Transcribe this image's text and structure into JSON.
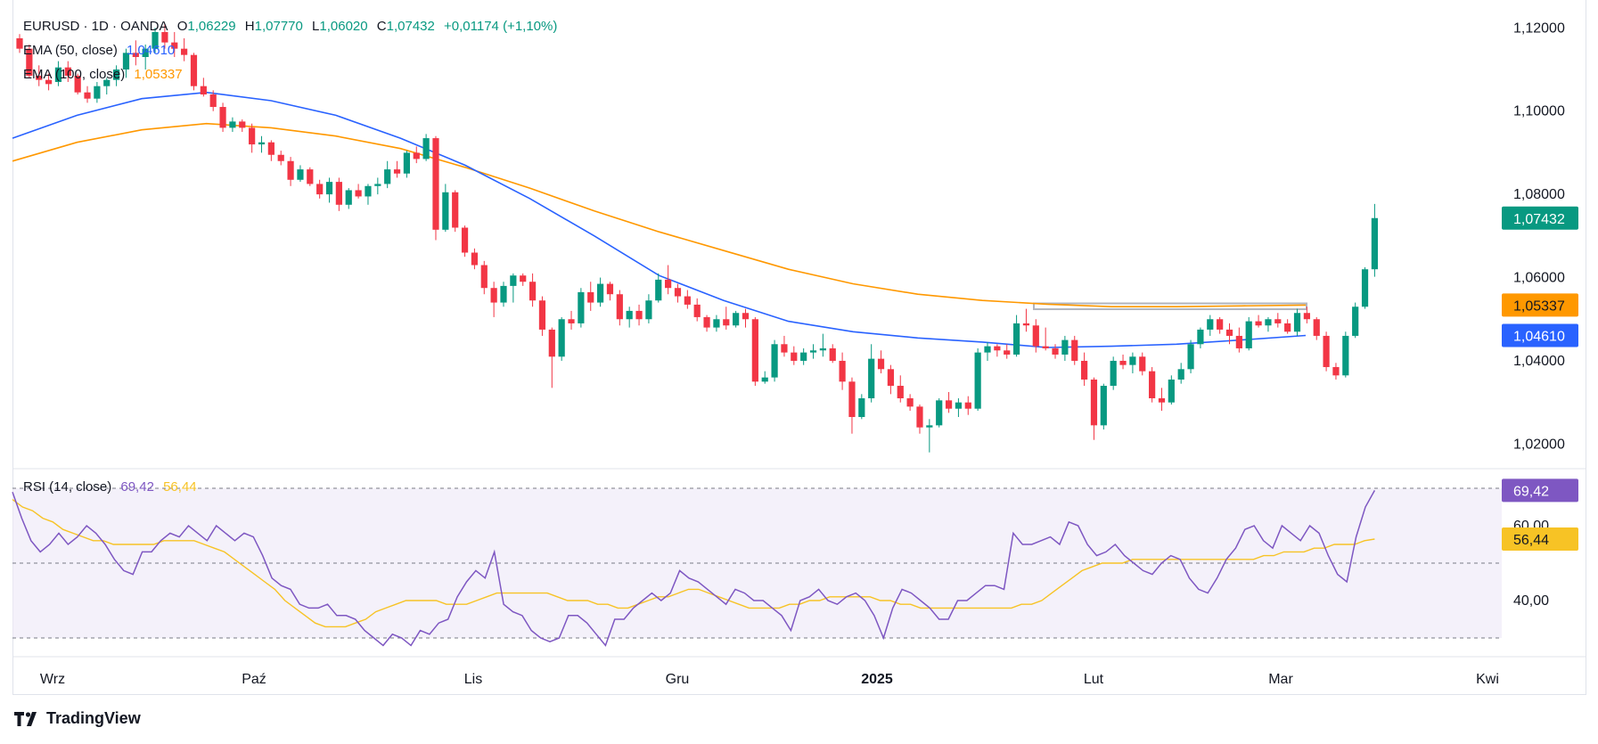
{
  "header": {
    "symbol": "EURUSD · 1D · OANDA",
    "o_label": "O",
    "o_value": "1,06229",
    "h_label": "H",
    "h_value": "1,07770",
    "l_label": "L",
    "l_value": "1,06020",
    "c_label": "C",
    "c_value": "1,07432",
    "change": "+0,01174 (+1,10%)"
  },
  "indicators": {
    "ema50_label": "EMA (50, close)",
    "ema50_value": "1,04610",
    "ema100_label": "EMA (100, close)",
    "ema100_value": "1,05337",
    "rsi_label": "RSI (14, close)",
    "rsi_value": "69,42",
    "rsi_ma_value": "56,44"
  },
  "branding": {
    "name": "TradingView"
  },
  "colors": {
    "up": "#089981",
    "down": "#f23645",
    "ema50": "#2962ff",
    "ema100": "#ff9800",
    "rsi": "#7e57c2",
    "rsi_ma": "#f7c325",
    "rsi_band": "#ede7f6",
    "zone": "#b2b5be"
  },
  "chart_data": [
    {
      "type": "candlestick",
      "title": "EURUSD · 1D · OANDA",
      "x_ticks": [
        "Wrz",
        "Paź",
        "Lis",
        "Gru",
        "2025",
        "Lut",
        "Mar",
        "Kwi"
      ],
      "y_ticks": [
        "1,12000",
        "1,10000",
        "1,08000",
        "1,06000",
        "1,04000",
        "1,02000"
      ],
      "ylim": [
        1.0143,
        1.1267
      ],
      "price_badges": [
        "1,07432",
        "1,05337",
        "1,04610"
      ],
      "candles_ohlc": [
        [
          1.1175,
          1.1185,
          1.114,
          1.115
        ],
        [
          1.115,
          1.116,
          1.108,
          1.1085
        ],
        [
          1.1085,
          1.111,
          1.106,
          1.1075
        ],
        [
          1.1075,
          1.109,
          1.105,
          1.1065
        ],
        [
          1.107,
          1.112,
          1.106,
          1.1105
        ],
        [
          1.1105,
          1.112,
          1.107,
          1.1085
        ],
        [
          1.1085,
          1.109,
          1.104,
          1.1045
        ],
        [
          1.1045,
          1.106,
          1.102,
          1.103
        ],
        [
          1.103,
          1.107,
          1.102,
          1.106
        ],
        [
          1.106,
          1.108,
          1.104,
          1.1075
        ],
        [
          1.1075,
          1.111,
          1.106,
          1.11
        ],
        [
          1.11,
          1.115,
          1.108,
          1.114
        ],
        [
          1.114,
          1.117,
          1.111,
          1.113
        ],
        [
          1.113,
          1.116,
          1.11,
          1.115
        ],
        [
          1.115,
          1.12,
          1.114,
          1.119
        ],
        [
          1.119,
          1.121,
          1.115,
          1.1165
        ],
        [
          1.1165,
          1.119,
          1.113,
          1.115
        ],
        [
          1.115,
          1.1175,
          1.112,
          1.1135
        ],
        [
          1.1135,
          1.114,
          1.105,
          1.106
        ],
        [
          1.106,
          1.108,
          1.1035,
          1.104
        ],
        [
          1.104,
          1.105,
          1.1,
          1.101
        ],
        [
          1.101,
          1.102,
          1.095,
          1.096
        ],
        [
          1.096,
          1.0985,
          1.095,
          1.0975
        ],
        [
          1.0975,
          1.098,
          1.095,
          1.096
        ],
        [
          1.096,
          1.097,
          1.09,
          1.092
        ],
        [
          1.092,
          1.094,
          1.09,
          1.0925
        ],
        [
          1.0925,
          1.093,
          1.088,
          1.0895
        ],
        [
          1.0895,
          1.0905,
          1.087,
          1.088
        ],
        [
          1.088,
          1.089,
          1.082,
          1.0835
        ],
        [
          1.0835,
          1.087,
          1.083,
          1.086
        ],
        [
          1.086,
          1.0865,
          1.082,
          1.0825
        ],
        [
          1.0825,
          1.0835,
          1.079,
          1.08
        ],
        [
          1.08,
          1.084,
          1.078,
          1.083
        ],
        [
          1.083,
          1.084,
          1.076,
          1.0775
        ],
        [
          1.0775,
          1.0815,
          1.0765,
          1.081
        ],
        [
          1.081,
          1.0825,
          1.079,
          1.0795
        ],
        [
          1.0795,
          1.0825,
          1.0775,
          1.082
        ],
        [
          1.082,
          1.084,
          1.08,
          1.0825
        ],
        [
          1.0825,
          1.088,
          1.0815,
          1.086
        ],
        [
          1.086,
          1.088,
          1.084,
          1.085
        ],
        [
          1.085,
          1.0905,
          1.084,
          1.09
        ],
        [
          1.09,
          1.0915,
          1.0875,
          1.0885
        ],
        [
          1.0885,
          1.0945,
          1.088,
          1.0935
        ],
        [
          1.0935,
          1.094,
          1.069,
          1.0715
        ],
        [
          1.0715,
          1.0825,
          1.071,
          1.0805
        ],
        [
          1.0805,
          1.081,
          1.071,
          1.072
        ],
        [
          1.072,
          1.0725,
          1.065,
          1.066
        ],
        [
          1.066,
          1.067,
          1.062,
          1.063
        ],
        [
          1.063,
          1.064,
          1.056,
          1.0575
        ],
        [
          1.0575,
          1.059,
          1.0505,
          1.054
        ],
        [
          1.054,
          1.059,
          1.053,
          1.058
        ],
        [
          1.058,
          1.061,
          1.054,
          1.0605
        ],
        [
          1.0605,
          1.061,
          1.058,
          1.059
        ],
        [
          1.059,
          1.061,
          1.053,
          1.0545
        ],
        [
          1.0545,
          1.0555,
          1.046,
          1.0475
        ],
        [
          1.0475,
          1.048,
          1.0335,
          1.041
        ],
        [
          1.041,
          1.0505,
          1.04,
          1.05
        ],
        [
          1.05,
          1.052,
          1.0475,
          1.049
        ],
        [
          1.049,
          1.0575,
          1.048,
          1.0565
        ],
        [
          1.0565,
          1.059,
          1.052,
          1.054
        ],
        [
          1.054,
          1.06,
          1.053,
          1.0585
        ],
        [
          1.0585,
          1.059,
          1.0545,
          1.056
        ],
        [
          1.056,
          1.057,
          1.0485,
          1.05
        ],
        [
          1.05,
          1.053,
          1.048,
          1.052
        ],
        [
          1.052,
          1.0535,
          1.0485,
          1.05
        ],
        [
          1.05,
          1.056,
          1.049,
          1.0545
        ],
        [
          1.0545,
          1.061,
          1.054,
          1.0595
        ],
        [
          1.0595,
          1.063,
          1.056,
          1.0575
        ],
        [
          1.0575,
          1.0585,
          1.054,
          1.0555
        ],
        [
          1.0555,
          1.057,
          1.0525,
          1.0535
        ],
        [
          1.0535,
          1.055,
          1.0495,
          1.0505
        ],
        [
          1.0505,
          1.051,
          1.047,
          1.048
        ],
        [
          1.048,
          1.051,
          1.047,
          1.05
        ],
        [
          1.05,
          1.053,
          1.0475,
          1.0485
        ],
        [
          1.0485,
          1.052,
          1.048,
          1.0515
        ],
        [
          1.0515,
          1.0525,
          1.048,
          1.05
        ],
        [
          1.05,
          1.0505,
          1.034,
          1.035
        ],
        [
          1.035,
          1.0375,
          1.0345,
          1.036
        ],
        [
          1.036,
          1.045,
          1.035,
          1.044
        ],
        [
          1.044,
          1.046,
          1.041,
          1.042
        ],
        [
          1.042,
          1.0435,
          1.039,
          1.04
        ],
        [
          1.04,
          1.043,
          1.039,
          1.042
        ],
        [
          1.042,
          1.044,
          1.0405,
          1.0425
        ],
        [
          1.0425,
          1.0465,
          1.041,
          1.043
        ],
        [
          1.043,
          1.044,
          1.0395,
          1.04
        ],
        [
          1.04,
          1.042,
          1.033,
          1.035
        ],
        [
          1.035,
          1.036,
          1.0225,
          1.0265
        ],
        [
          1.0265,
          1.032,
          1.026,
          1.031
        ],
        [
          1.031,
          1.044,
          1.03,
          1.0405
        ],
        [
          1.0405,
          1.0425,
          1.037,
          1.038
        ],
        [
          1.038,
          1.039,
          1.032,
          1.034
        ],
        [
          1.034,
          1.0365,
          1.03,
          1.031
        ],
        [
          1.031,
          1.032,
          1.028,
          1.029
        ],
        [
          1.029,
          1.0295,
          1.0225,
          1.024
        ],
        [
          1.024,
          1.026,
          1.018,
          1.0245
        ],
        [
          1.0245,
          1.031,
          1.024,
          1.0305
        ],
        [
          1.0305,
          1.0325,
          1.0275,
          1.0285
        ],
        [
          1.0285,
          1.031,
          1.0265,
          1.03
        ],
        [
          1.03,
          1.0315,
          1.027,
          1.0285
        ],
        [
          1.0285,
          1.043,
          1.028,
          1.042
        ],
        [
          1.042,
          1.0445,
          1.04,
          1.0435
        ],
        [
          1.0435,
          1.044,
          1.041,
          1.0425
        ],
        [
          1.0425,
          1.044,
          1.0405,
          1.0415
        ],
        [
          1.0415,
          1.051,
          1.041,
          1.049
        ],
        [
          1.049,
          1.0525,
          1.047,
          1.0485
        ],
        [
          1.0485,
          1.05,
          1.042,
          1.0435
        ],
        [
          1.0435,
          1.048,
          1.0425,
          1.043
        ],
        [
          1.043,
          1.044,
          1.0405,
          1.0415
        ],
        [
          1.0415,
          1.046,
          1.04,
          1.045
        ],
        [
          1.045,
          1.046,
          1.039,
          1.04
        ],
        [
          1.04,
          1.042,
          1.034,
          1.0355
        ],
        [
          1.0355,
          1.036,
          1.021,
          1.0245
        ],
        [
          1.0245,
          1.0345,
          1.0235,
          1.034
        ],
        [
          1.034,
          1.041,
          1.033,
          1.04
        ],
        [
          1.04,
          1.0415,
          1.038,
          1.039
        ],
        [
          1.039,
          1.042,
          1.037,
          1.041
        ],
        [
          1.041,
          1.042,
          1.0365,
          1.0375
        ],
        [
          1.0375,
          1.0385,
          1.03,
          1.031
        ],
        [
          1.031,
          1.0335,
          1.028,
          1.03
        ],
        [
          1.03,
          1.0365,
          1.0295,
          1.0355
        ],
        [
          1.0355,
          1.0395,
          1.0345,
          1.038
        ],
        [
          1.038,
          1.045,
          1.037,
          1.044
        ],
        [
          1.044,
          1.048,
          1.043,
          1.0475
        ],
        [
          1.0475,
          1.051,
          1.046,
          1.05
        ],
        [
          1.05,
          1.0505,
          1.0465,
          1.0475
        ],
        [
          1.0475,
          1.049,
          1.044,
          1.046
        ],
        [
          1.046,
          1.048,
          1.042,
          1.043
        ],
        [
          1.043,
          1.0505,
          1.0425,
          1.0495
        ],
        [
          1.0495,
          1.051,
          1.048,
          1.0485
        ],
        [
          1.0485,
          1.0505,
          1.047,
          1.05
        ],
        [
          1.05,
          1.0515,
          1.048,
          1.049
        ],
        [
          1.049,
          1.05,
          1.0465,
          1.047
        ],
        [
          1.047,
          1.0525,
          1.046,
          1.0515
        ],
        [
          1.0515,
          1.053,
          1.049,
          1.05
        ],
        [
          1.05,
          1.0505,
          1.045,
          1.046
        ],
        [
          1.046,
          1.047,
          1.0375,
          1.0385
        ],
        [
          1.0385,
          1.0395,
          1.0355,
          1.0365
        ],
        [
          1.0365,
          1.047,
          1.036,
          1.046
        ],
        [
          1.046,
          1.054,
          1.0455,
          1.053
        ],
        [
          1.053,
          1.0625,
          1.0525,
          1.062
        ],
        [
          1.062,
          1.0777,
          1.0602,
          1.0743
        ]
      ],
      "ema50": [
        1.0935,
        1.099,
        1.103,
        1.1045,
        1.1025,
        1.099,
        1.0935,
        1.087,
        1.079,
        1.07,
        1.0605,
        1.0545,
        1.0495,
        1.047,
        1.0455,
        1.0445,
        1.0432,
        1.0435,
        1.044,
        1.045,
        1.0461
      ],
      "ema100": [
        1.088,
        1.0925,
        1.0955,
        1.097,
        1.096,
        1.094,
        1.091,
        1.0865,
        1.0815,
        1.076,
        1.071,
        1.0665,
        1.062,
        1.0585,
        1.056,
        1.0545,
        1.0536,
        1.053,
        1.053,
        1.0532,
        1.0534
      ],
      "resistance_zone": [
        1.0524,
        1.0538
      ]
    },
    {
      "type": "line",
      "title": "RSI (14, close)",
      "y_ticks": [
        "60,00",
        "40,00"
      ],
      "ylim": [
        25,
        75
      ],
      "levels": [
        70,
        50,
        30
      ],
      "price_badges": [
        "69,42",
        "56,44"
      ],
      "series": [
        {
          "name": "RSI",
          "values": [
            69,
            62,
            56,
            53,
            55,
            58,
            55,
            57,
            60,
            58,
            55,
            51,
            48,
            47,
            53,
            53,
            56,
            58,
            57,
            60,
            58,
            56,
            60,
            58,
            56,
            58,
            57,
            52,
            46,
            44,
            43,
            39,
            38,
            38,
            39,
            36,
            36,
            35,
            32,
            30,
            28,
            31,
            30,
            28,
            32,
            31,
            34,
            35,
            41,
            45,
            48,
            46,
            53,
            39,
            37,
            36,
            32,
            30,
            29,
            30,
            36,
            36,
            34,
            31,
            28,
            35,
            35,
            38,
            40,
            42,
            40,
            42,
            48,
            46,
            45,
            43,
            41,
            39,
            43,
            42,
            40,
            40,
            38,
            36,
            32,
            40,
            41,
            43,
            40,
            39,
            41,
            42,
            40,
            36,
            30,
            38,
            43,
            42,
            40,
            38,
            35,
            35,
            40,
            40,
            42,
            44,
            44,
            43,
            58,
            55,
            55,
            56,
            57,
            55,
            61,
            60,
            55,
            52,
            53,
            55,
            52,
            50,
            48,
            47,
            50,
            52,
            51,
            46,
            43,
            42,
            46,
            51,
            54,
            59,
            60,
            56,
            54,
            60,
            58,
            56,
            60,
            58,
            52,
            47,
            45,
            57,
            65,
            69.42
          ]
        },
        {
          "name": "RSI MA",
          "values": [
            67,
            65,
            64,
            62,
            61,
            59,
            58,
            57,
            56,
            56,
            55,
            55,
            55,
            55,
            55,
            56,
            56,
            56,
            56,
            55,
            54,
            53,
            51,
            49,
            47,
            45,
            43,
            40,
            38,
            36,
            34,
            33,
            33,
            33,
            34,
            35,
            37,
            38,
            39,
            40,
            40,
            40,
            40,
            39,
            39,
            39,
            40,
            41,
            42,
            42,
            42,
            42,
            42,
            42,
            41,
            40,
            40,
            40,
            39,
            39,
            38,
            38,
            39,
            40,
            41,
            41,
            42,
            43,
            43,
            42,
            41,
            40,
            39,
            38,
            38,
            38,
            38,
            39,
            39,
            40,
            40,
            41,
            41,
            41,
            41,
            41,
            40,
            40,
            39,
            39,
            38,
            38,
            38,
            38,
            38,
            38,
            38,
            38,
            38,
            38,
            39,
            39,
            40,
            42,
            44,
            46,
            48,
            49,
            50,
            50,
            50,
            51,
            51,
            51,
            51,
            51,
            51,
            51,
            51,
            51,
            51,
            51,
            51,
            51,
            52,
            52,
            53,
            53,
            53,
            54,
            54,
            55,
            55,
            55,
            56,
            56.44
          ]
        }
      ]
    }
  ]
}
